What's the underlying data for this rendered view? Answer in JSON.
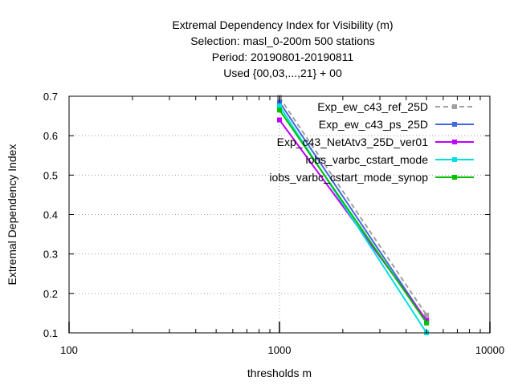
{
  "chart_data": {
    "type": "line",
    "title_lines": [
      "Extremal Dependency Index  for Visibility (m)",
      "Selection: masl_0-200m    500 stations",
      "Period: 20190801-20190811",
      "Used {00,03,...,21} + 00"
    ],
    "xlabel": "thresholds m",
    "ylabel": "Extremal Dependency Index",
    "xscale": "log",
    "xlim": [
      100,
      10000
    ],
    "ylim": [
      0.1,
      0.7
    ],
    "x_ticks": [
      {
        "value": 100,
        "label": "100"
      },
      {
        "value": 1000,
        "label": "1000"
      },
      {
        "value": 10000,
        "label": "10000"
      }
    ],
    "y_ticks": [
      {
        "value": 0.1,
        "label": "0.1"
      },
      {
        "value": 0.2,
        "label": "0.2"
      },
      {
        "value": 0.3,
        "label": "0.3"
      },
      {
        "value": 0.4,
        "label": "0.4"
      },
      {
        "value": 0.5,
        "label": "0.5"
      },
      {
        "value": 0.6,
        "label": "0.6"
      },
      {
        "value": 0.7,
        "label": "0.7"
      }
    ],
    "grid": true,
    "legend_position": "top-right",
    "x": [
      1000,
      5000
    ],
    "series": [
      {
        "name": "Exp_ew_c43_ref_25D",
        "values": [
          0.697,
          0.145
        ],
        "color": "#a0a0a0",
        "dashed": true
      },
      {
        "name": "Exp_ew_c43_ps_25D",
        "values": [
          0.685,
          0.13
        ],
        "color": "#4169e1",
        "dashed": false
      },
      {
        "name": "Exp_c43_NetAtv3_25D_ver01",
        "values": [
          0.64,
          0.132
        ],
        "color": "#c000ff",
        "dashed": false
      },
      {
        "name": "iobs_varbc_cstart_mode",
        "values": [
          0.675,
          0.1
        ],
        "color": "#00e0e0",
        "dashed": false
      },
      {
        "name": "iobs_varbc_cstart_mode_synop",
        "values": [
          0.665,
          0.125
        ],
        "color": "#00c000",
        "dashed": false
      }
    ]
  }
}
